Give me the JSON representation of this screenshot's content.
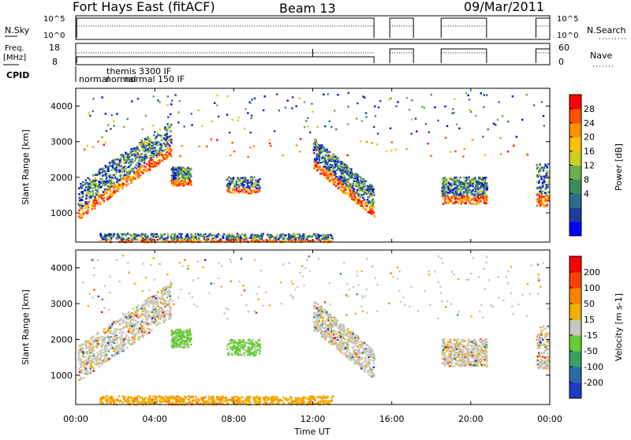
{
  "header": {
    "station": "Fort Hays East (fitACF)",
    "beam": "Beam 13",
    "date": "09/Mar/2011"
  },
  "status_panels": {
    "nsky_label": "N.Sky",
    "nsky_ticks": [
      "10^5",
      "10^0"
    ],
    "nsearch_label": "N.Search",
    "nsearch_ticks": [
      "10^5",
      "10^0"
    ],
    "freq_label_1": "Freq.",
    "freq_label_2": "[MHz]",
    "freq_ticks": [
      "18",
      "8"
    ],
    "nave_label": "Nave",
    "nave_ticks": [
      "60",
      "0"
    ],
    "cpid_label": "CPID",
    "cpid_texts": [
      "themis 3300 IF",
      "normal",
      "normal",
      "normal 150 IF"
    ]
  },
  "chart_data": [
    {
      "type": "heatmap",
      "name": "power",
      "ylabel": "Slant Range [km]",
      "yticks": [
        "1000",
        "2000",
        "3000",
        "4000"
      ],
      "ylim": [
        180,
        4500
      ],
      "colorbar_label": "Power [dB]",
      "colorbar_ticks": [
        "28",
        "24",
        "20",
        "16",
        "12",
        "8",
        "4"
      ],
      "colors": [
        "#0000ff",
        "#1e3c9c",
        "#2c6e8c",
        "#3c8c5a",
        "#6ab04c",
        "#c8d020",
        "#ffc000",
        "#ff9000",
        "#ff5000",
        "#ff0000"
      ]
    },
    {
      "type": "heatmap",
      "name": "velocity",
      "ylabel": "Slant Range [km]",
      "yticks": [
        "1000",
        "2000",
        "3000",
        "4000"
      ],
      "ylim": [
        180,
        4500
      ],
      "colorbar_label": "Velocity [m s-1]",
      "colorbar_ticks": [
        "200",
        "100",
        "50",
        "15",
        "-15",
        "-50",
        "-100",
        "-200"
      ],
      "colors": [
        "#1e3cc8",
        "#2a6aa8",
        "#3aa060",
        "#66cc33",
        "#c8c8c0",
        "#f0b000",
        "#ff8000",
        "#ff4000",
        "#ff0000"
      ]
    }
  ],
  "xaxis": {
    "label": "Time UT",
    "ticks": [
      "00:00",
      "04:00",
      "08:00",
      "12:00",
      "16:00",
      "20:00",
      "00:00"
    ]
  }
}
